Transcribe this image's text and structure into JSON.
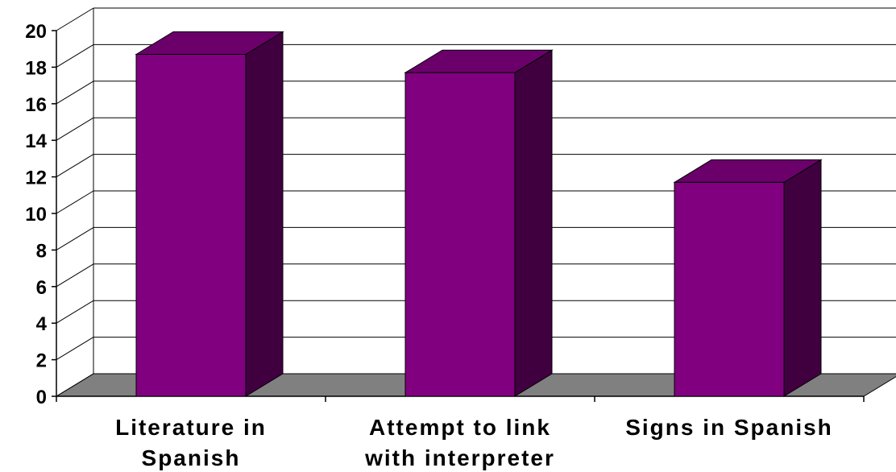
{
  "chart_data": {
    "type": "bar",
    "categories": [
      [
        "Literature in",
        "Spanish"
      ],
      [
        "Attempt to link",
        "with interpreter"
      ],
      [
        "Signs in Spanish"
      ]
    ],
    "values": [
      18.7,
      17.7,
      11.7
    ],
    "ylim": [
      0,
      20
    ],
    "yticks": [
      "0",
      "2",
      "4",
      "6",
      "8",
      "10",
      "12",
      "14",
      "16",
      "18",
      "20"
    ],
    "grid": true,
    "legend": "none",
    "style": "3d",
    "colors": {
      "bar_front": "#800080",
      "bar_top": "#6b006b",
      "bar_side": "#400040",
      "floor": "#808080",
      "grid": "#000000",
      "background": "#ffffff"
    }
  }
}
